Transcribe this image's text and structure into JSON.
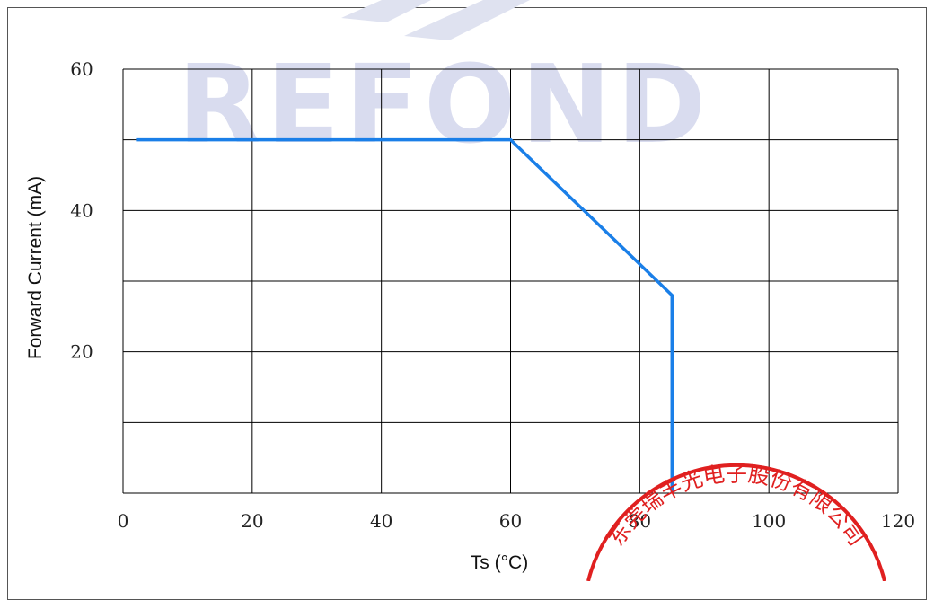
{
  "watermark": {
    "text": "REFOND",
    "color": "#d9dcef"
  },
  "seal": {
    "text": "东莞瑞丰光电子股份有限公司",
    "color": "#e02020"
  },
  "chart_data": {
    "type": "line",
    "title": "",
    "xlabel": "Ts (°C)",
    "ylabel": "Forward Current (mA)",
    "xlim": [
      0,
      120
    ],
    "ylim": [
      0,
      60
    ],
    "x_ticks": [
      0,
      20,
      40,
      60,
      80,
      100,
      120
    ],
    "y_tick_labels": [
      20,
      40,
      60
    ],
    "y_gridlines": [
      0,
      10,
      20,
      30,
      40,
      50,
      60
    ],
    "grid": true,
    "series": [
      {
        "color": "#1a7fe8",
        "points": [
          [
            2,
            50
          ],
          [
            60,
            50
          ],
          [
            85,
            28
          ],
          [
            85,
            0
          ]
        ]
      }
    ]
  }
}
